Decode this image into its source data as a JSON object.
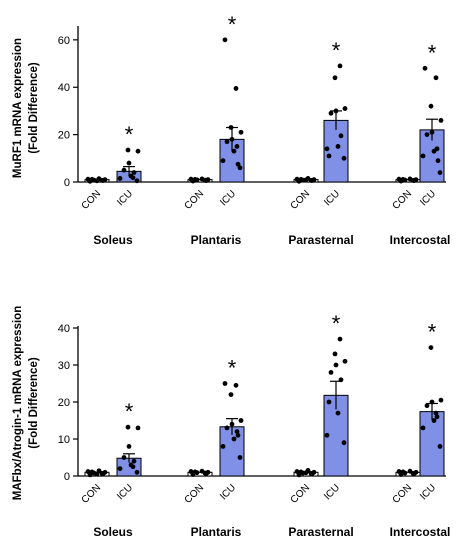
{
  "colors": {
    "icu_bar": "#7f90e6",
    "bar_edge": "#000000",
    "point": "#000000"
  },
  "chart_data": [
    {
      "type": "bar",
      "ylabel_lines": [
        "MuRF1 mRNA expression",
        "(Fold Difference)"
      ],
      "ylim": [
        0,
        65
      ],
      "yticks": [
        0,
        20,
        40,
        60
      ],
      "grid": false,
      "group_labels": [
        "CON",
        "ICU"
      ],
      "categories": [
        "Soleus",
        "Plantaris",
        "Parasternal",
        "Intercostal"
      ],
      "series": [
        {
          "name": "CON",
          "values": [
            1,
            1,
            1,
            1
          ],
          "sem": [
            0.3,
            0.3,
            0.3,
            0.3
          ],
          "points": [
            [
              0.3,
              0.6,
              0.8,
              1.0,
              1.2,
              1.4,
              0.7,
              1.1,
              0.5
            ],
            [
              0.4,
              0.6,
              0.9,
              1.0,
              1.2,
              1.3,
              0.8,
              1.1
            ],
            [
              0.3,
              0.6,
              0.8,
              1.0,
              1.2,
              1.5,
              0.7,
              1.1,
              0.9
            ],
            [
              0.4,
              0.6,
              0.8,
              1.0,
              1.2,
              1.3,
              0.7,
              1.1
            ]
          ]
        },
        {
          "name": "ICU",
          "values": [
            4.5,
            18,
            26,
            22
          ],
          "sem": [
            2,
            5,
            4,
            4.5
          ],
          "points": [
            [
              0.5,
              1.5,
              2.5,
              4,
              5,
              8,
              13,
              13.5,
              1.8
            ],
            [
              6,
              9,
              13,
              15,
              17,
              18,
              21,
              23,
              39.5,
              60,
              7.5
            ],
            [
              10,
              14,
              15,
              19.5,
              29,
              30,
              31,
              44,
              49,
              11
            ],
            [
              4,
              11,
              13,
              14,
              20,
              21,
              26,
              32,
              44,
              48,
              9
            ]
          ]
        }
      ],
      "annotations": [
        "*",
        "*",
        "*",
        "*"
      ]
    },
    {
      "type": "bar",
      "ylabel_lines": [
        "MAFbx/Atrogin-1 mRNA expression",
        "(Fold Difference)"
      ],
      "ylim": [
        0,
        40
      ],
      "yticks": [
        0,
        10,
        20,
        30,
        40
      ],
      "grid": false,
      "group_labels": [
        "CON",
        "ICU"
      ],
      "categories": [
        "Soleus",
        "Plantaris",
        "Parasternal",
        "Intercostal"
      ],
      "series": [
        {
          "name": "CON",
          "values": [
            1,
            1,
            1,
            1
          ],
          "sem": [
            0.2,
            0.2,
            0.2,
            0.2
          ],
          "points": [
            [
              0.3,
              0.6,
              0.8,
              1.0,
              1.2,
              1.4,
              0.7,
              1.1,
              0.5
            ],
            [
              0.4,
              0.6,
              0.9,
              1.0,
              1.2,
              1.3,
              0.8,
              1.1
            ],
            [
              0.3,
              0.6,
              0.8,
              1.0,
              1.2,
              1.5,
              0.7,
              1.1,
              0.9
            ],
            [
              0.4,
              0.6,
              0.8,
              1.0,
              1.2,
              1.3,
              0.7,
              1.1
            ]
          ]
        },
        {
          "name": "ICU",
          "values": [
            4.8,
            13.3,
            21.8,
            17.4
          ],
          "sem": [
            1.2,
            2.2,
            3.8,
            2.2
          ],
          "points": [
            [
              1,
              2,
              3,
              4,
              5,
              8,
              13,
              13.2,
              2.5
            ],
            [
              5,
              8,
              10,
              12,
              13,
              14,
              15,
              22,
              24.5,
              25,
              11
            ],
            [
              9,
              11,
              17,
              26,
              28,
              30,
              31,
              33,
              37,
              20
            ],
            [
              8,
              13,
              15,
              16,
              19,
              20,
              20.5,
              34.7,
              17
            ]
          ]
        }
      ],
      "annotations": [
        "*",
        "*",
        "*",
        "*"
      ]
    }
  ]
}
